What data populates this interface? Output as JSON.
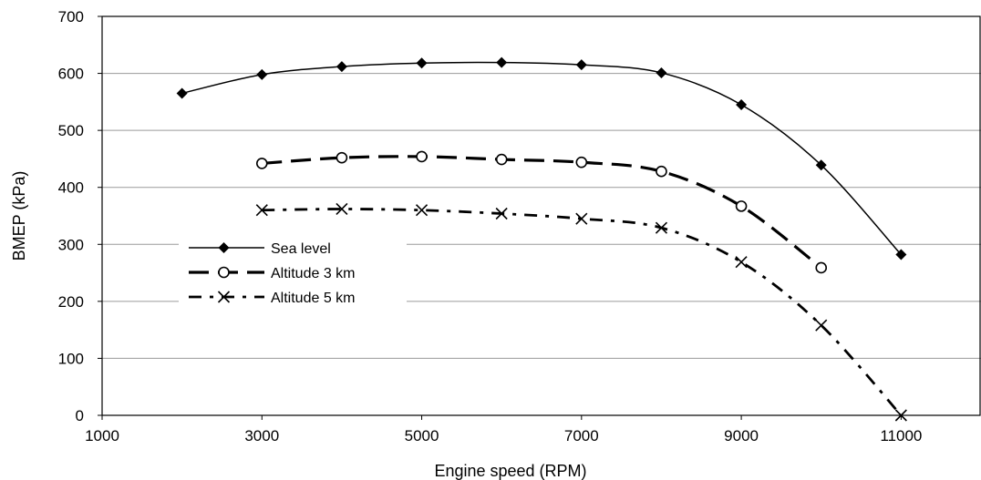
{
  "chart_data": {
    "type": "line",
    "title": "",
    "xlabel": "Engine speed (RPM)",
    "ylabel": "BMEP (kPa)",
    "xlim": [
      1000,
      12000
    ],
    "ylim": [
      0,
      700
    ],
    "xticks": [
      1000,
      3000,
      5000,
      7000,
      9000,
      11000
    ],
    "yticks": [
      0,
      100,
      200,
      300,
      400,
      500,
      600,
      700
    ],
    "grid": "horizontal",
    "legend_position": "middle-left",
    "series": [
      {
        "name": "Sea level",
        "marker": "diamond",
        "line_style": "solid",
        "color": "#000000",
        "x": [
          2000,
          3000,
          4000,
          5000,
          6000,
          7000,
          8000,
          9000,
          10000,
          11000
        ],
        "y": [
          565,
          598,
          612,
          618,
          619,
          615,
          601,
          545,
          439,
          282
        ]
      },
      {
        "name": "Altitude 3 km",
        "marker": "circle",
        "line_style": "long-dash",
        "color": "#000000",
        "x": [
          3000,
          4000,
          5000,
          6000,
          7000,
          8000,
          9000,
          10000
        ],
        "y": [
          442,
          452,
          454,
          449,
          444,
          428,
          367,
          259
        ]
      },
      {
        "name": "Altitude 5 km",
        "marker": "x",
        "line_style": "dash-dot",
        "color": "#000000",
        "x": [
          3000,
          4000,
          5000,
          6000,
          7000,
          8000,
          9000,
          10000,
          11000
        ],
        "y": [
          360,
          362,
          360,
          354,
          345,
          329,
          269,
          158,
          0
        ]
      }
    ]
  }
}
